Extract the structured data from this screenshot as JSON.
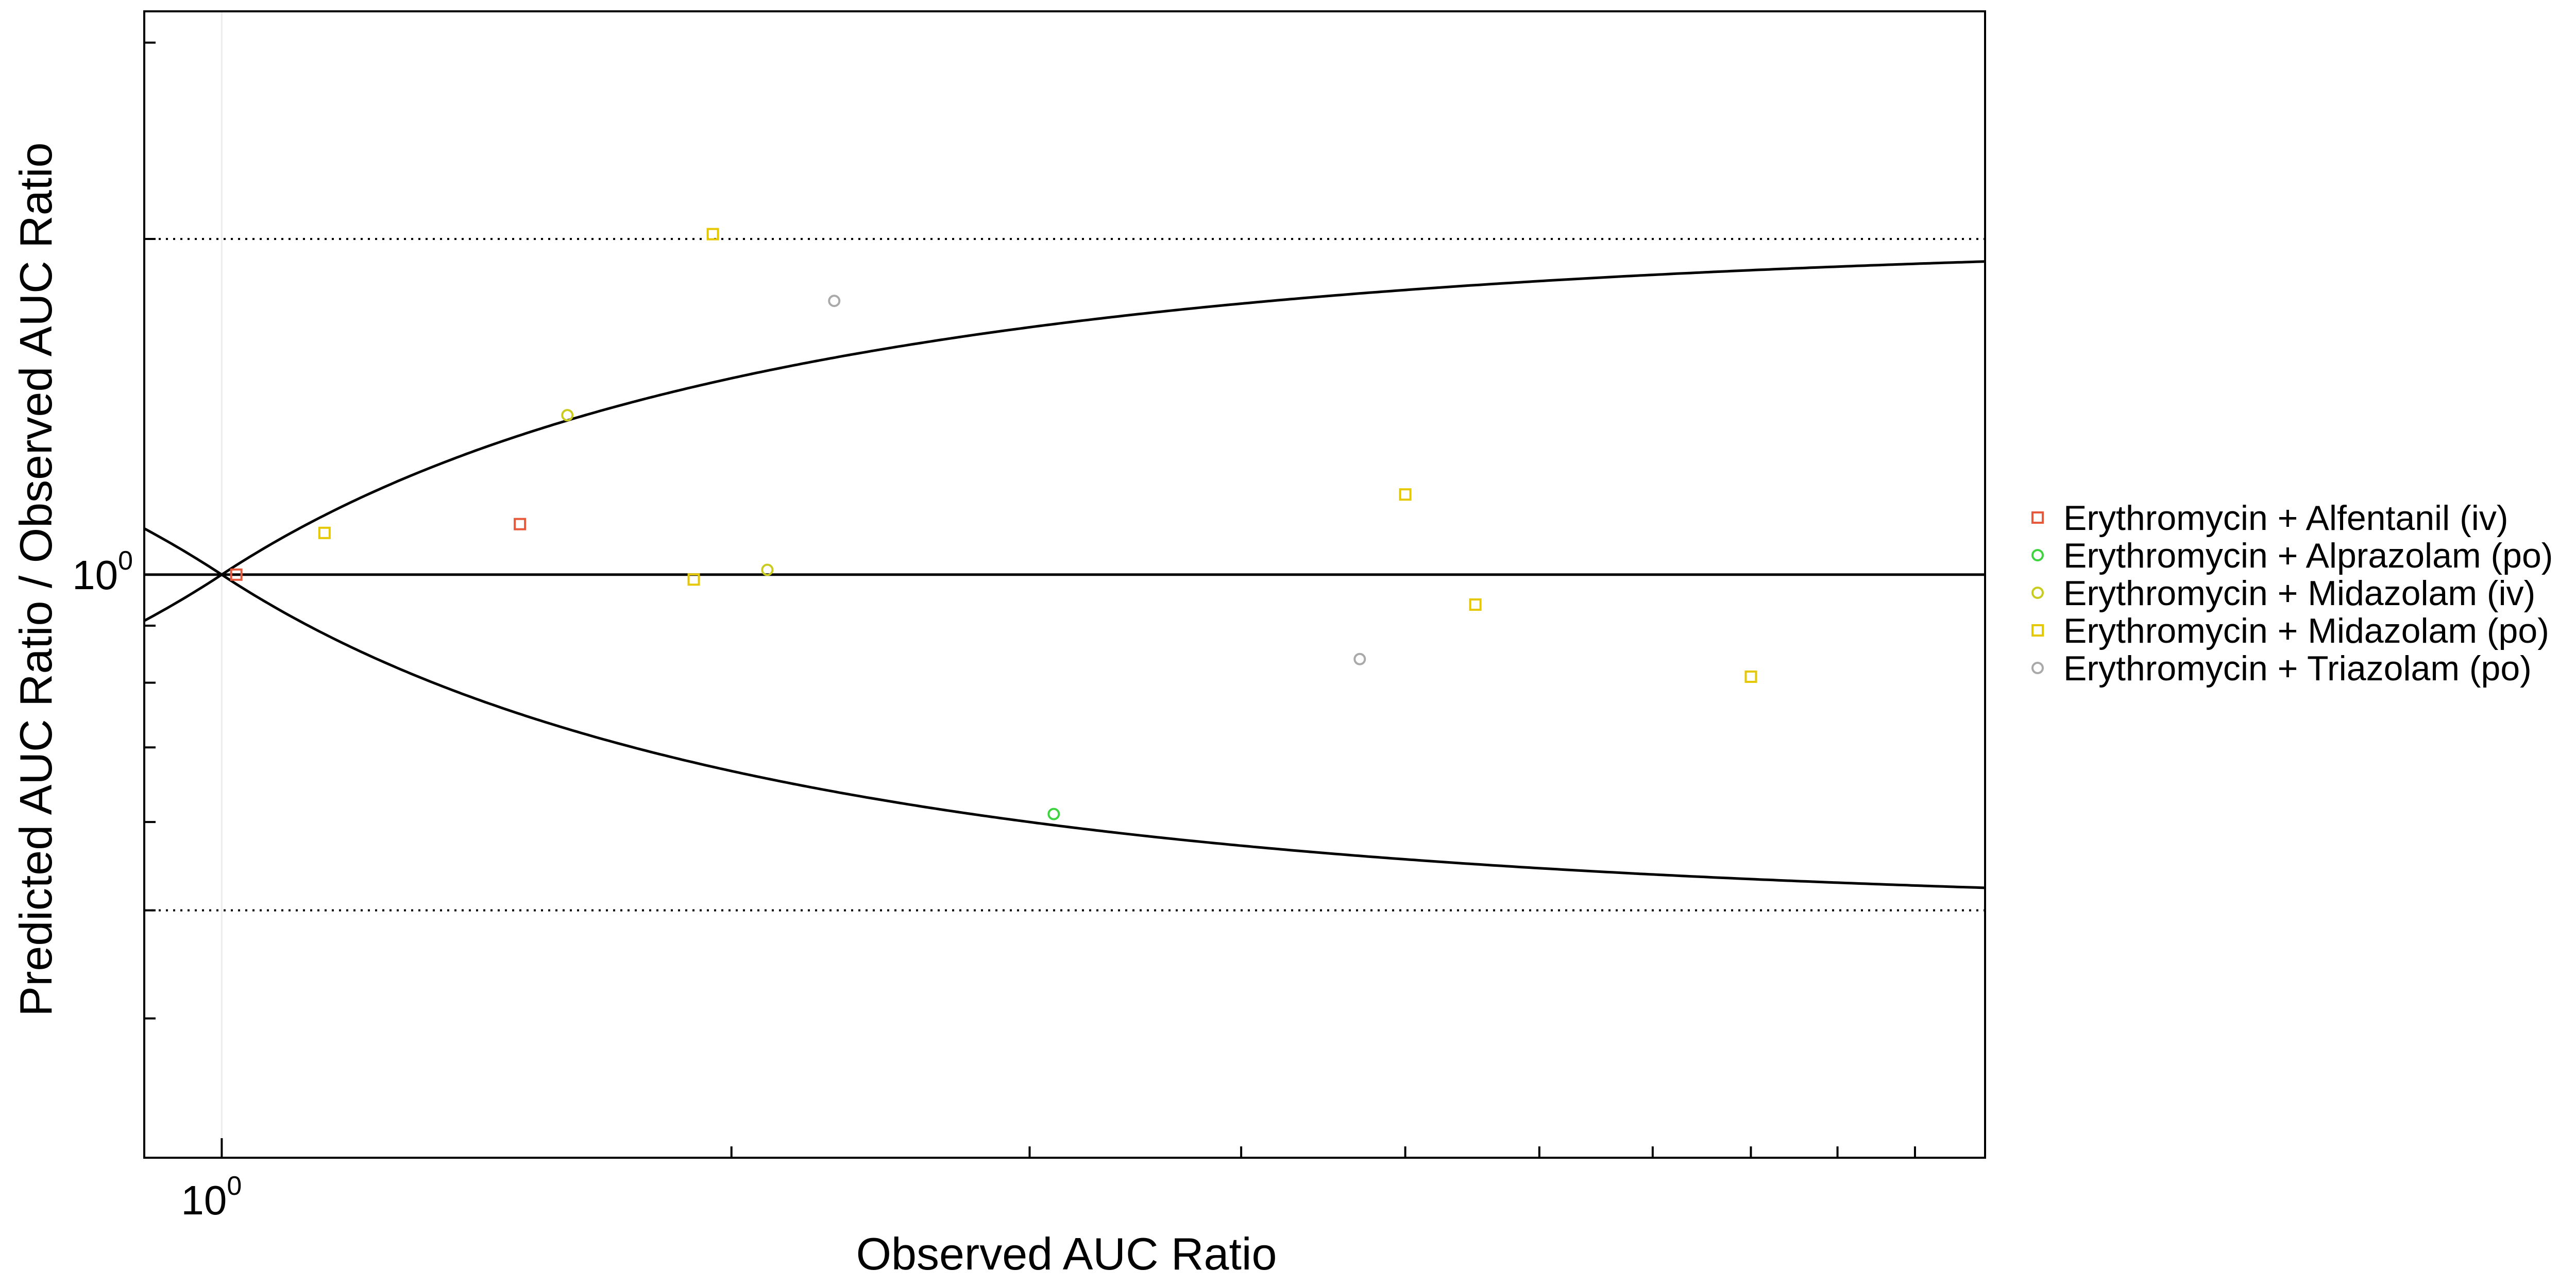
{
  "chart_data": {
    "type": "scatter",
    "x_scale": "log",
    "y_scale": "log",
    "xlabel": "Observed AUC Ratio",
    "ylabel": "Predicted AUC Ratio / Observed AUC Ratio",
    "xlim": [
      0.9,
      11
    ],
    "ylim": [
      0.3,
      3.2
    ],
    "x_ticks": [
      {
        "base": "10",
        "exp": "0",
        "value": 1
      }
    ],
    "y_ticks": [
      {
        "base": "10",
        "exp": "0",
        "value": 1
      }
    ],
    "grid": false,
    "legend_position": "right",
    "reference_lines": {
      "identity": 1,
      "twofold_dotted": [
        0.5,
        2
      ],
      "guest_limits": "curved bounds converging at x = 1"
    },
    "series": [
      {
        "name": "Erythromycin + Alfentanil (iv)",
        "marker": "square",
        "color": "#e8583a",
        "points": [
          [
            1.02,
            1.0
          ],
          [
            1.5,
            1.11
          ]
        ]
      },
      {
        "name": "Erythromycin + Alprazolam (po)",
        "marker": "circle",
        "color": "#3fd43f",
        "points": [
          [
            3.1,
            0.61
          ]
        ]
      },
      {
        "name": "Erythromycin + Midazolam (iv)",
        "marker": "circle",
        "color": "#c9cc1e",
        "points": [
          [
            1.6,
            1.39
          ],
          [
            2.1,
            1.01
          ]
        ]
      },
      {
        "name": "Erythromycin + Midazolam (po)",
        "marker": "square",
        "color": "#e5c800",
        "points": [
          [
            1.15,
            1.09
          ],
          [
            1.9,
            0.99
          ],
          [
            1.95,
            2.02
          ],
          [
            5.0,
            1.18
          ],
          [
            5.5,
            0.94
          ],
          [
            8.0,
            0.81
          ]
        ]
      },
      {
        "name": "Erythromycin + Triazolam (po)",
        "marker": "circle",
        "color": "#a9a9a9",
        "points": [
          [
            2.3,
            1.76
          ],
          [
            4.7,
            0.84
          ]
        ]
      }
    ]
  }
}
